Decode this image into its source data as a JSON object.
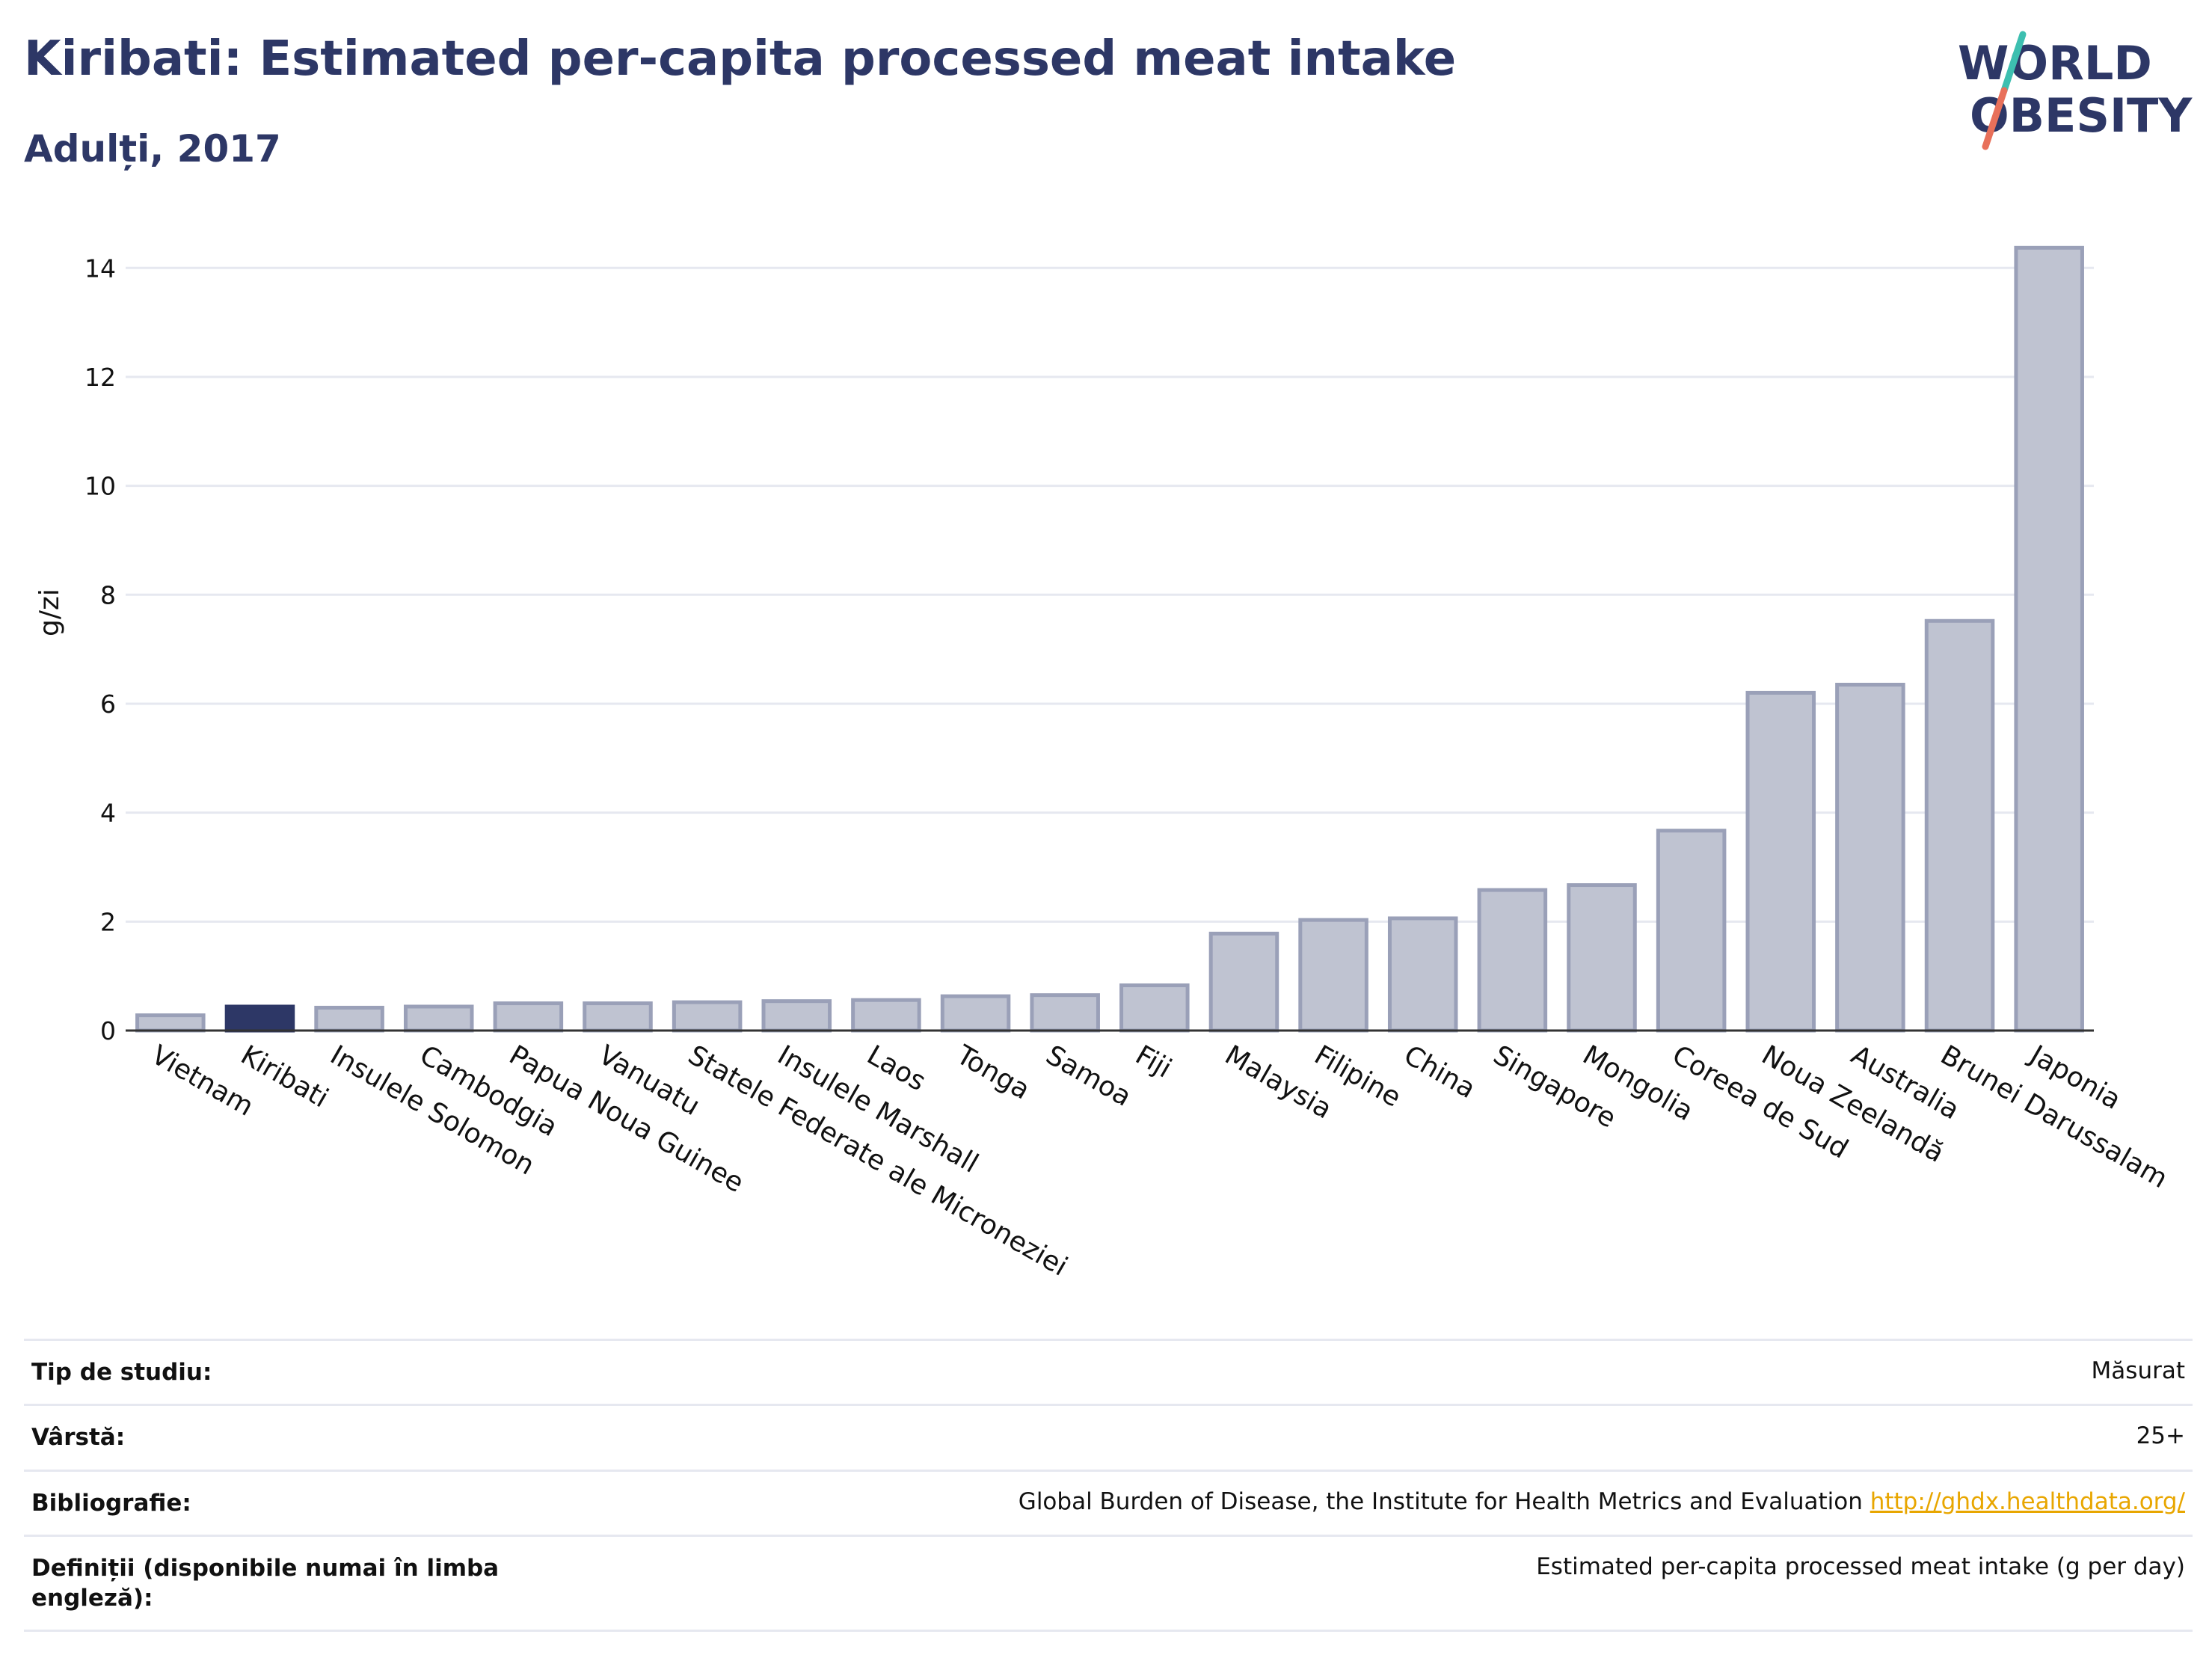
{
  "header": {
    "title": "Kiribati: Estimated per-capita processed meat intake",
    "subtitle": "Adulți, 2017"
  },
  "logo": {
    "line1": "WORLD",
    "line2": "OBESITY",
    "colors": {
      "text": "#2d3766",
      "slash_top": "#3dbfb0",
      "slash_bottom": "#e8705a"
    }
  },
  "colors": {
    "highlight_bar": "#2d3766",
    "bar_fill": "#bfc3d1",
    "bar_stroke": "#9aa0b8",
    "grid": "#e6e8f0"
  },
  "chart_data": {
    "type": "bar",
    "title": "Kiribati: Estimated per-capita processed meat intake",
    "subtitle": "Adulți, 2017",
    "ylabel": "g/zi",
    "xlabel": "",
    "ylim": [
      0,
      14.8
    ],
    "yticks": [
      0,
      2,
      4,
      6,
      8,
      10,
      12,
      14
    ],
    "grid": true,
    "highlight": "Kiribati",
    "categories": [
      "Vietnam",
      "Kiribati",
      "Insulele Solomon",
      "Cambodgia",
      "Papua Noua Guinee",
      "Vanuatu",
      "Statele Federate ale Microneziei",
      "Insulele Marshall",
      "Laos",
      "Tonga",
      "Samoa",
      "Fiji",
      "Malaysia",
      "Filipine",
      "China",
      "Singapore",
      "Mongolia",
      "Coreea de Sud",
      "Noua Zeelandă",
      "Australia",
      "Brunei Darussalam",
      "Japonia"
    ],
    "values": [
      0.28,
      0.44,
      0.42,
      0.44,
      0.5,
      0.5,
      0.52,
      0.54,
      0.56,
      0.63,
      0.65,
      0.83,
      1.78,
      2.03,
      2.06,
      2.58,
      2.67,
      3.67,
      6.2,
      6.35,
      7.52,
      14.37
    ]
  },
  "info_table": [
    {
      "key": "Tip de studiu:",
      "value": "Măsurat"
    },
    {
      "key": "Vârstă:",
      "value": "25+"
    },
    {
      "key": "Bibliografie:",
      "value": "Global Burden of Disease, the Institute for Health Metrics and Evaluation",
      "link": "http://ghdx.healthdata.org/"
    },
    {
      "key": "Definiții (disponibile numai în limba engleză):",
      "value": "Estimated per-capita processed meat intake (g per day)"
    }
  ]
}
